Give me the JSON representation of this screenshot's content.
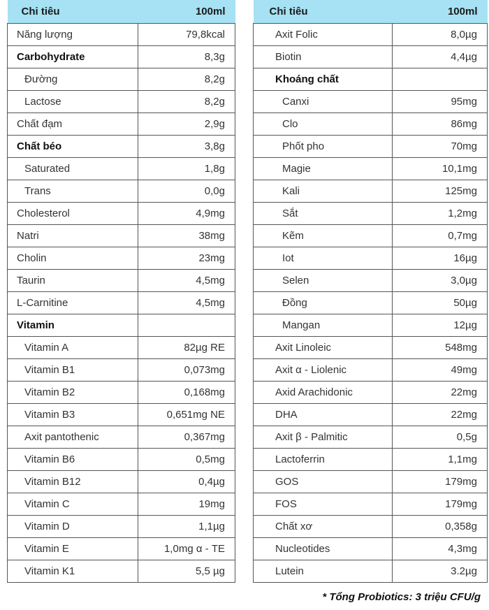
{
  "header": {
    "col1": "Chi tiêu",
    "col2": "100ml"
  },
  "left_table": [
    {
      "label": "Năng lượng",
      "value": "79,8kcal",
      "style": "normal"
    },
    {
      "label": "Carbohydrate",
      "value": "8,3g",
      "style": "bold"
    },
    {
      "label": "Đường",
      "value": "8,2g",
      "style": "sub"
    },
    {
      "label": "Lactose",
      "value": "8,2g",
      "style": "sub"
    },
    {
      "label": "Chất đạm",
      "value": "2,9g",
      "style": "normal"
    },
    {
      "label": "Chất béo",
      "value": "3,8g",
      "style": "bold"
    },
    {
      "label": "Saturated",
      "value": "1,8g",
      "style": "sub"
    },
    {
      "label": "Trans",
      "value": "0,0g",
      "style": "sub"
    },
    {
      "label": "Cholesterol",
      "value": "4,9mg",
      "style": "normal"
    },
    {
      "label": "Natri",
      "value": "38mg",
      "style": "normal"
    },
    {
      "label": "Cholin",
      "value": "23mg",
      "style": "normal"
    },
    {
      "label": "Taurin",
      "value": "4,5mg",
      "style": "normal"
    },
    {
      "label": "L-Carnitine",
      "value": "4,5mg",
      "style": "normal"
    },
    {
      "label": "Vitamin",
      "value": "",
      "style": "bold"
    },
    {
      "label": "Vitamin A",
      "value": "82µg RE",
      "style": "sub"
    },
    {
      "label": "Vitamin B1",
      "value": "0,073mg",
      "style": "sub"
    },
    {
      "label": "Vitamin B2",
      "value": "0,168mg",
      "style": "sub"
    },
    {
      "label": "Vitamin B3",
      "value": "0,651mg NE",
      "style": "sub"
    },
    {
      "label": "Axit pantothenic",
      "value": "0,367mg",
      "style": "sub"
    },
    {
      "label": "Vitamin B6",
      "value": "0,5mg",
      "style": "sub"
    },
    {
      "label": "Vitamin B12",
      "value": "0,4µg",
      "style": "sub"
    },
    {
      "label": "Vitamin C",
      "value": "19mg",
      "style": "sub"
    },
    {
      "label": "Vitamin D",
      "value": "1,1µg",
      "style": "sub"
    },
    {
      "label": "Vitamin E",
      "value": "1,0mg α - TE",
      "style": "sub"
    },
    {
      "label": "Vitamin K1",
      "value": "5,5 µg",
      "style": "sub"
    }
  ],
  "right_table": [
    {
      "label": "Axit Folic",
      "value": "8,0µg",
      "style": "normal"
    },
    {
      "label": "Biotin",
      "value": "4,4µg",
      "style": "normal"
    },
    {
      "label": "Khoáng chất",
      "value": "",
      "style": "bold"
    },
    {
      "label": "Canxi",
      "value": "95mg",
      "style": "sub"
    },
    {
      "label": "Clo",
      "value": "86mg",
      "style": "sub"
    },
    {
      "label": "Phốt pho",
      "value": "70mg",
      "style": "sub"
    },
    {
      "label": "Magie",
      "value": "10,1mg",
      "style": "sub"
    },
    {
      "label": "Kali",
      "value": "125mg",
      "style": "sub"
    },
    {
      "label": "Sắt",
      "value": "1,2mg",
      "style": "sub"
    },
    {
      "label": "Kẽm",
      "value": "0,7mg",
      "style": "sub"
    },
    {
      "label": "Iot",
      "value": "16µg",
      "style": "sub"
    },
    {
      "label": "Selen",
      "value": "3,0µg",
      "style": "sub"
    },
    {
      "label": "Đồng",
      "value": "50µg",
      "style": "sub"
    },
    {
      "label": "Mangan",
      "value": "12µg",
      "style": "sub"
    },
    {
      "label": "Axit Linoleic",
      "value": "548mg",
      "style": "normal"
    },
    {
      "label": "Axit α - Liolenic",
      "value": "49mg",
      "style": "normal"
    },
    {
      "label": "Axid Arachidonic",
      "value": "22mg",
      "style": "normal"
    },
    {
      "label": "DHA",
      "value": "22mg",
      "style": "normal"
    },
    {
      "label": "Axit β - Palmitic",
      "value": "0,5g",
      "style": "normal"
    },
    {
      "label": "Lactoferrin",
      "value": "1,1mg",
      "style": "normal"
    },
    {
      "label": "GOS",
      "value": "179mg",
      "style": "normal"
    },
    {
      "label": "FOS",
      "value": "179mg",
      "style": "normal"
    },
    {
      "label": "Chất xơ",
      "value": "0,358g",
      "style": "normal"
    },
    {
      "label": "Nucleotides",
      "value": "4,3mg",
      "style": "normal"
    },
    {
      "label": "Lutein",
      "value": "3.2µg",
      "style": "normal"
    }
  ],
  "footnote": "* Tổng Probiotics: 3 triệu CFU/g",
  "colors": {
    "header_bg": "#a6e1f4",
    "border": "#555555"
  }
}
